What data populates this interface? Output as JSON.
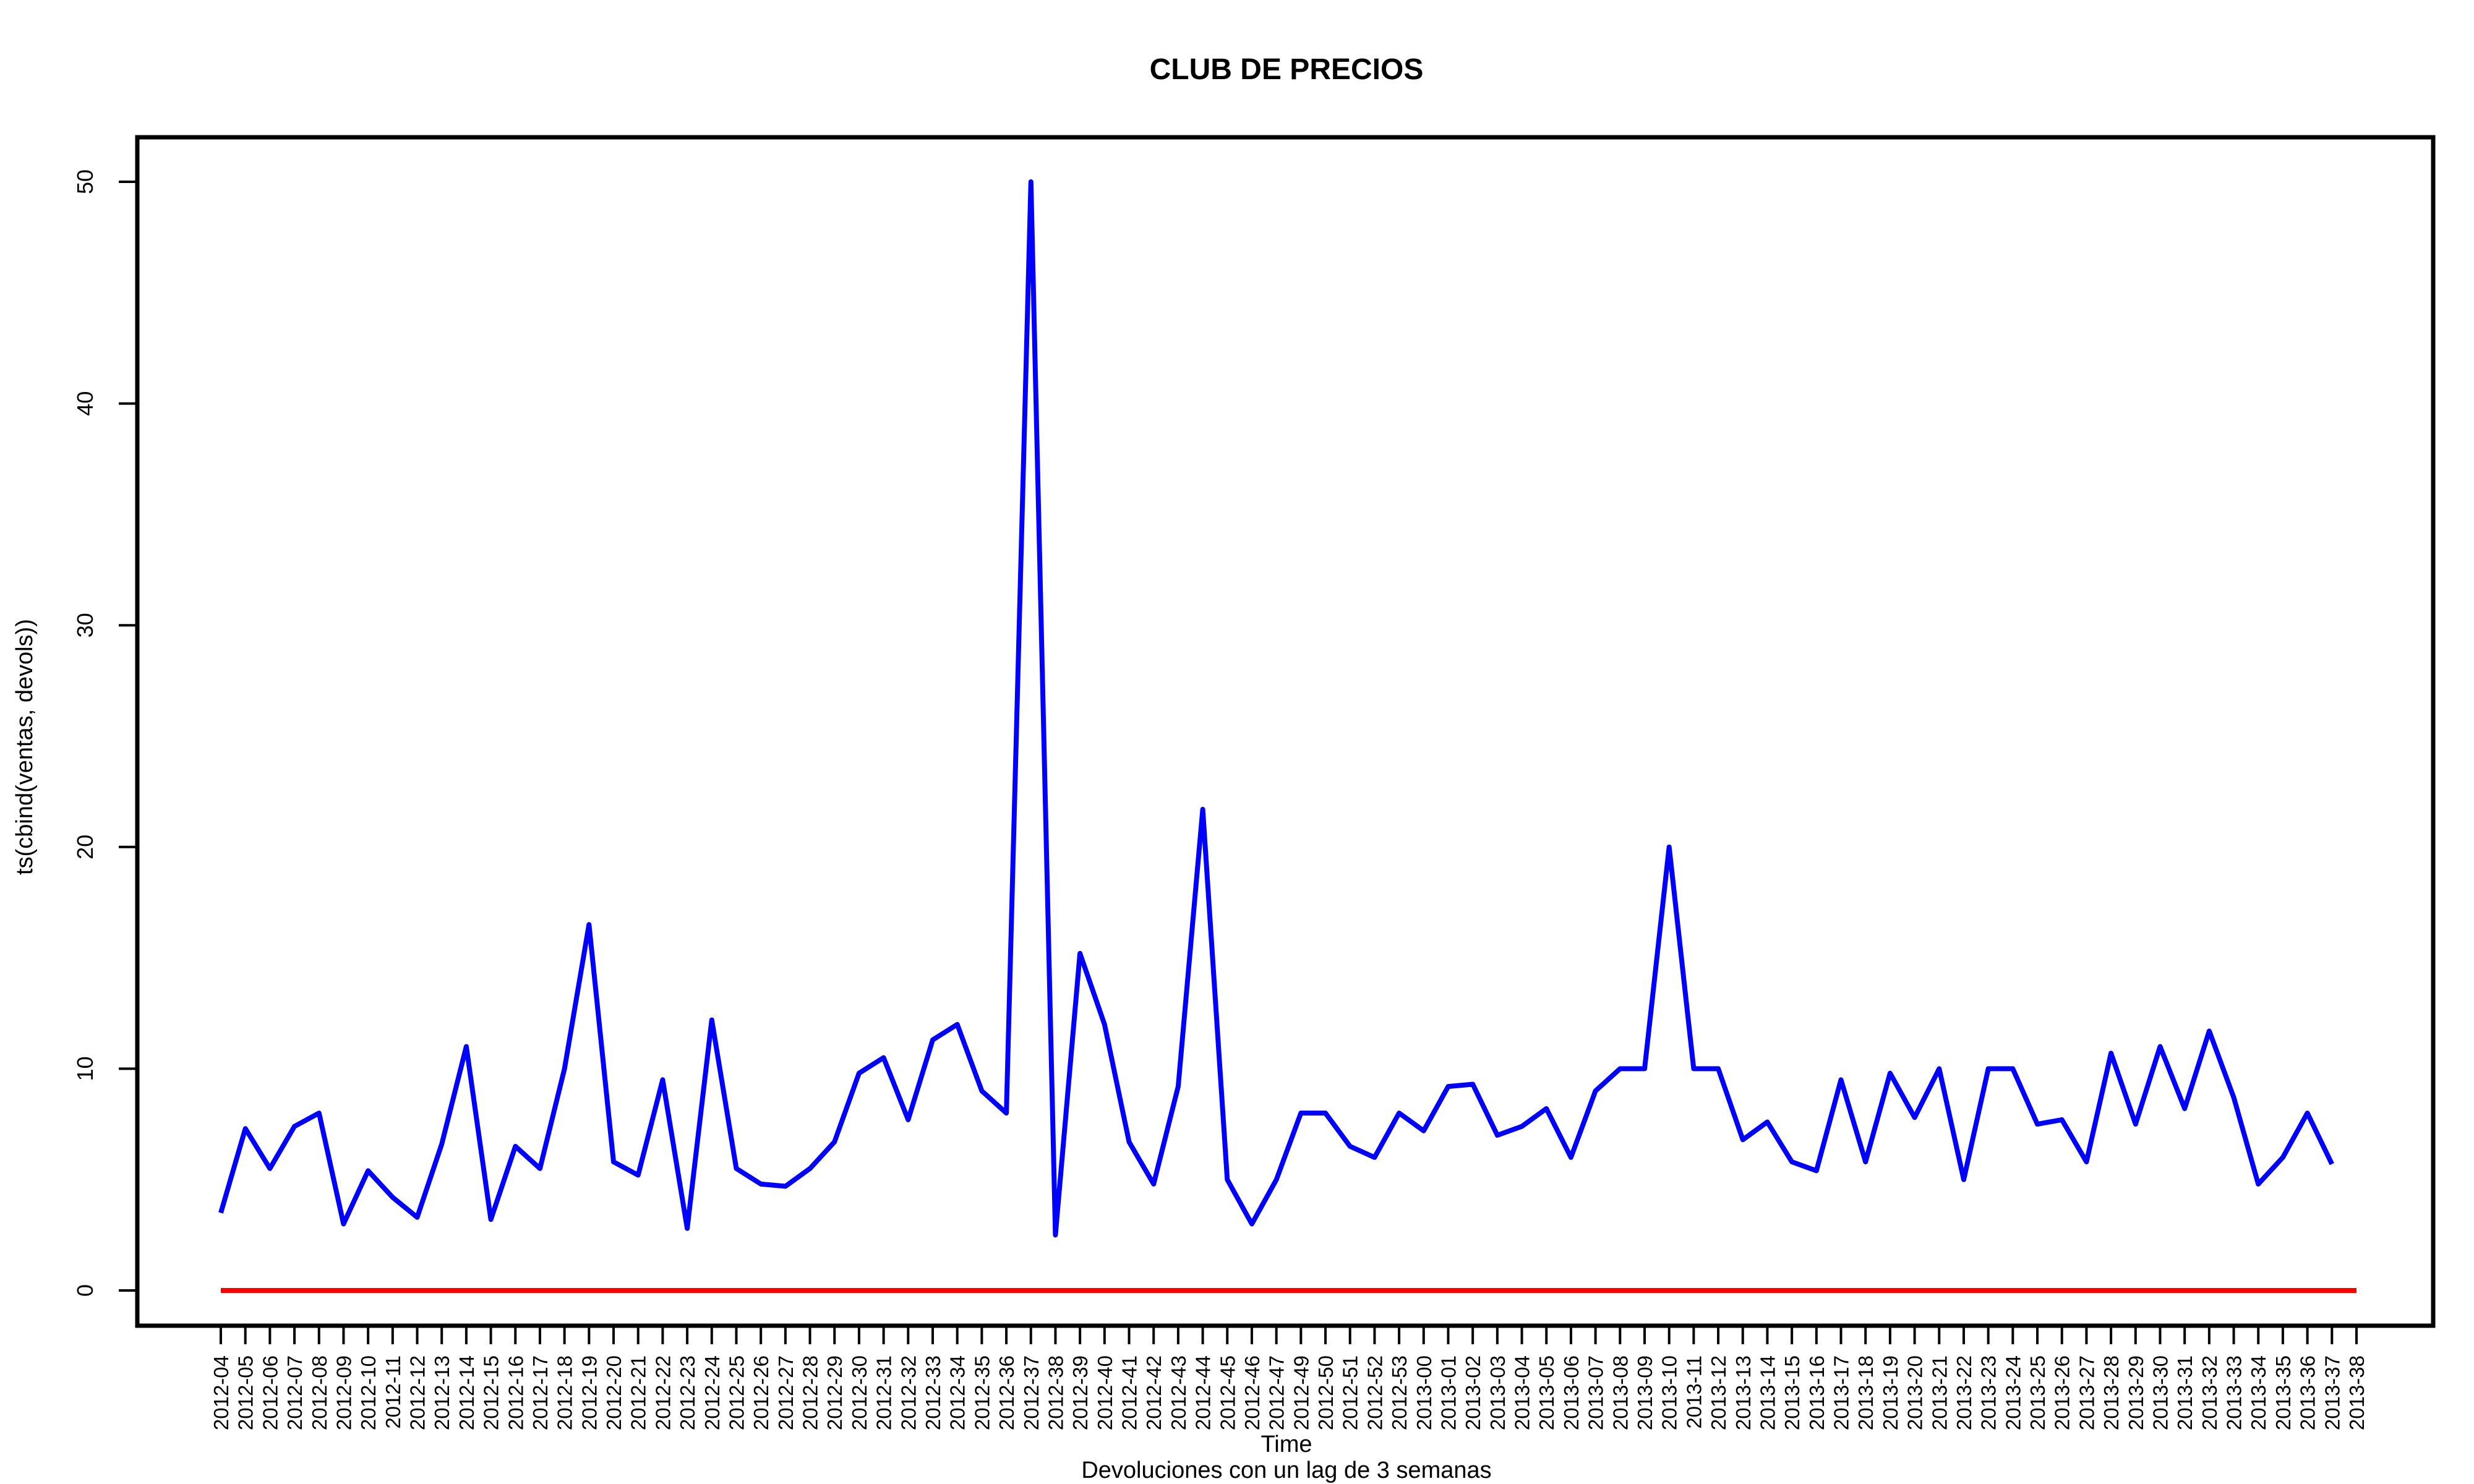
{
  "chart_data": {
    "type": "line",
    "title": "CLUB DE PRECIOS",
    "xlabel": "Time",
    "ylabel": "ts(cbind(ventas, devols))",
    "subtitle": "Devoluciones con un lag de 3 semanas",
    "ylim": [
      0,
      50
    ],
    "yticks": [
      "0",
      "10",
      "20",
      "30",
      "40",
      "50"
    ],
    "grid": false,
    "categories": [
      "2012-04",
      "2012-05",
      "2012-06",
      "2012-07",
      "2012-08",
      "2012-09",
      "2012-10",
      "2012-11",
      "2012-12",
      "2012-13",
      "2012-14",
      "2012-15",
      "2012-16",
      "2012-17",
      "2012-18",
      "2012-19",
      "2012-20",
      "2012-21",
      "2012-22",
      "2012-23",
      "2012-24",
      "2012-25",
      "2012-26",
      "2012-27",
      "2012-28",
      "2012-29",
      "2012-30",
      "2012-31",
      "2012-32",
      "2012-33",
      "2012-34",
      "2012-35",
      "2012-36",
      "2012-37",
      "2012-38",
      "2012-39",
      "2012-40",
      "2012-41",
      "2012-42",
      "2012-43",
      "2012-44",
      "2012-45",
      "2012-46",
      "2012-47",
      "2012-49",
      "2012-50",
      "2012-51",
      "2012-52",
      "2012-53",
      "2013-00",
      "2013-01",
      "2013-02",
      "2013-03",
      "2013-04",
      "2013-05",
      "2013-06",
      "2013-07",
      "2013-08",
      "2013-09",
      "2013-10",
      "2013-11",
      "2013-12",
      "2013-13",
      "2013-14",
      "2013-15",
      "2013-16",
      "2013-17",
      "2013-18",
      "2013-19",
      "2013-20",
      "2013-21",
      "2013-22",
      "2013-23",
      "2013-24",
      "2013-25",
      "2013-26",
      "2013-27",
      "2013-28",
      "2013-29",
      "2013-30",
      "2013-31",
      "2013-32",
      "2013-33",
      "2013-34",
      "2013-35",
      "2013-36",
      "2013-37",
      "2013-38"
    ],
    "series": [
      {
        "color": "#0000ff",
        "values": [
          3.5,
          7.3,
          5.5,
          7.4,
          8.0,
          3.0,
          5.4,
          4.2,
          3.3,
          6.6,
          11.0,
          3.2,
          6.5,
          5.5,
          10.0,
          16.5,
          5.8,
          5.2,
          9.5,
          2.8,
          12.2,
          5.5,
          4.8,
          4.7,
          5.5,
          6.7,
          9.8,
          10.5,
          7.7,
          11.3,
          12.0,
          9.0,
          8.0,
          50.0,
          2.5,
          15.2,
          12.0,
          6.7,
          4.8,
          9.2,
          21.7,
          5.0,
          3.0,
          5.0,
          8.0,
          8.0,
          6.5,
          6.0,
          8.0,
          7.2,
          9.2,
          9.3,
          7.0,
          7.4,
          8.2,
          6.0,
          9.0,
          10.0,
          10.0,
          20.0,
          10.0,
          10.0,
          6.8,
          7.6,
          5.8,
          5.4,
          9.5,
          5.8,
          9.8,
          7.8,
          10.0,
          5.0,
          10.0,
          10.0,
          7.5,
          7.7,
          5.8,
          10.7,
          7.5,
          11.0,
          8.2,
          11.7,
          8.7,
          4.8,
          6.0,
          8.0,
          5.7,
          null
        ]
      },
      {
        "color": "#ff0000",
        "values": [
          0,
          0,
          0,
          0,
          0,
          0,
          0,
          0,
          0,
          0,
          0,
          0,
          0,
          0,
          0,
          0,
          0,
          0,
          0,
          0,
          0,
          0,
          0,
          0,
          0,
          0,
          0,
          0,
          0,
          0,
          0,
          0,
          0,
          0,
          0,
          0,
          0,
          0,
          0,
          0,
          0,
          0,
          0,
          0,
          0,
          0,
          0,
          0,
          0,
          0,
          0,
          0,
          0,
          0,
          0,
          0,
          0,
          0,
          0,
          0,
          0,
          0,
          0,
          0,
          0,
          0,
          0,
          0,
          0,
          0,
          0,
          0,
          0,
          0,
          0,
          0,
          0,
          0,
          0,
          0,
          0,
          0,
          0,
          0,
          0,
          0,
          0,
          0
        ]
      }
    ]
  }
}
